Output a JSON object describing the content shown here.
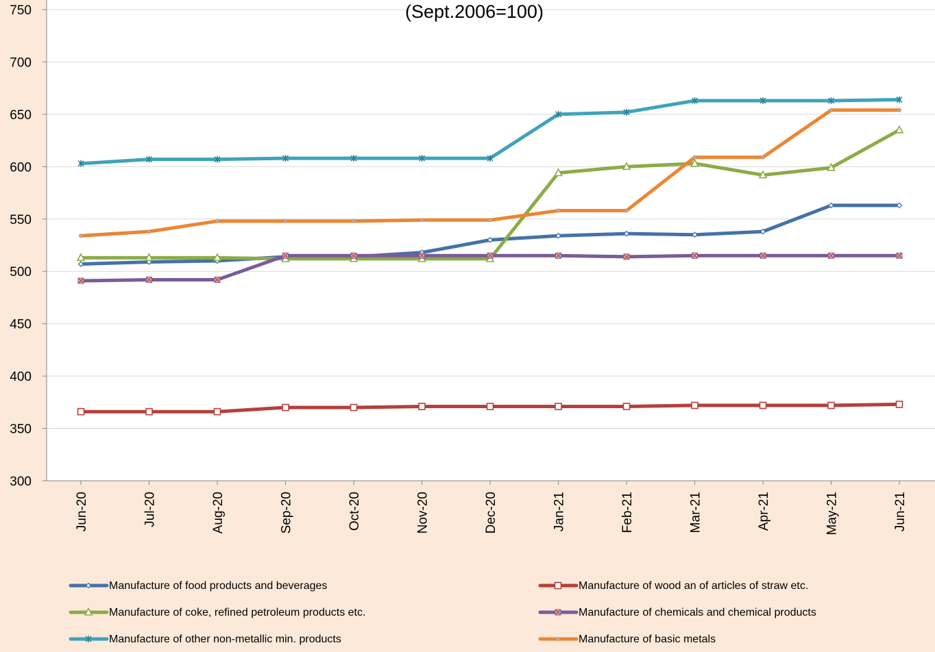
{
  "chart_data": {
    "type": "line",
    "title": "(Sept.2006=100)",
    "categories": [
      "Jun-20",
      "Jul-20",
      "Aug-20",
      "Sep-20",
      "Oct-20",
      "Nov-20",
      "Dec-20",
      "Jan-21",
      "Feb-21",
      "Mar-21",
      "Apr-21",
      "May-21",
      "Jun-21"
    ],
    "ylim": [
      300,
      750
    ],
    "yticks": [
      "300",
      "350",
      "400",
      "450",
      "500",
      "550",
      "600",
      "650",
      "700",
      "750"
    ],
    "grid": "horizontal",
    "legend_position": "bottom",
    "series": [
      {
        "name": "Manufacture of food products and beverages",
        "color": "#4472a8",
        "marker": "diamond",
        "values": [
          507,
          509,
          510,
          514,
          514,
          518,
          530,
          534,
          536,
          535,
          538,
          563,
          563
        ]
      },
      {
        "name": "Manufacture of wood an of articles of straw etc.",
        "color": "#b5403c",
        "marker": "square",
        "values": [
          366,
          366,
          366,
          370,
          370,
          371,
          371,
          371,
          371,
          372,
          372,
          372,
          373
        ]
      },
      {
        "name": "Manufacture of coke, refined petroleum products etc.",
        "color": "#8bac46",
        "marker": "triangle",
        "values": [
          513,
          513,
          513,
          512,
          512,
          512,
          512,
          594,
          600,
          603,
          592,
          599,
          635
        ]
      },
      {
        "name": "Manufacture of chemicals and chemical products",
        "color": "#7a5c9a",
        "marker": "x",
        "values": [
          491,
          492,
          492,
          515,
          515,
          515,
          515,
          515,
          514,
          515,
          515,
          515,
          515
        ]
      },
      {
        "name": "Manufacture of other non-metallic min. products",
        "color": "#3fa3bb",
        "marker": "star",
        "values": [
          603,
          607,
          607,
          608,
          608,
          608,
          608,
          650,
          652,
          663,
          663,
          663,
          664
        ]
      },
      {
        "name": "Manufacture of basic metals",
        "color": "#ed8532",
        "marker": "circle",
        "values": [
          534,
          538,
          548,
          548,
          548,
          549,
          549,
          558,
          558,
          609,
          609,
          654,
          654
        ]
      }
    ]
  }
}
